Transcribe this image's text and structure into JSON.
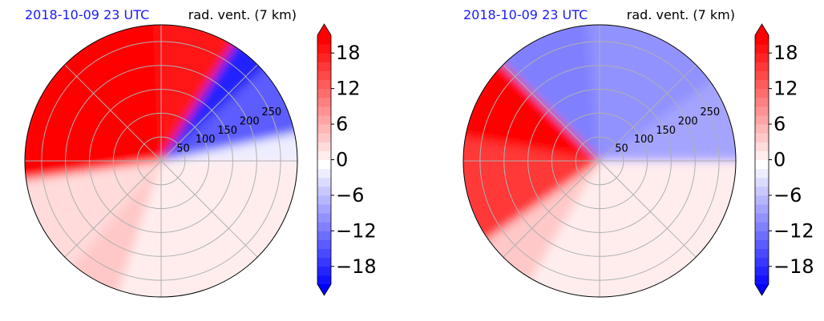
{
  "chart_data": [
    {
      "type": "polar-heatmap",
      "title_left": "2018-10-09 23 UTC",
      "title_right": "rad. vent. (7 km)",
      "radial_ticks": [
        "50",
        "100",
        "150",
        "200",
        "250"
      ],
      "radial_values": [
        50,
        100,
        150,
        200,
        250
      ],
      "r_max": 285,
      "n_spokes": 8,
      "grid": true,
      "colorbar": {
        "ticks": [
          "18",
          "12",
          "6",
          "0",
          "−6",
          "−12",
          "−18"
        ],
        "tick_values": [
          18,
          12,
          6,
          0,
          -6,
          -12,
          -18
        ],
        "vmin": -21,
        "vmax": 21,
        "extend": "both",
        "low_color": "#0000ff",
        "high_color": "#ff0000",
        "mid_color": "#ffffff"
      },
      "fields": [
        {
          "from_deg": 42,
          "to_deg": 92,
          "value": 20
        },
        {
          "from_deg": 92,
          "to_deg": 188,
          "value": 21
        },
        {
          "from_deg": 188,
          "to_deg": 230,
          "value": 3
        },
        {
          "from_deg": 230,
          "to_deg": 252,
          "value": 4
        },
        {
          "from_deg": 252,
          "to_deg": 300,
          "value": 1
        },
        {
          "from_deg": 300,
          "to_deg": 360,
          "value": 1
        },
        {
          "from_deg": 0,
          "to_deg": 12,
          "value": -1
        },
        {
          "from_deg": 12,
          "to_deg": 42,
          "value": -13
        },
        {
          "from_deg": 42,
          "to_deg": 58,
          "value": -18
        }
      ]
    },
    {
      "type": "polar-heatmap",
      "title_left": "2018-10-09 23 UTC",
      "title_right": "rad. vent. (7 km)",
      "radial_ticks": [
        "50",
        "100",
        "150",
        "200",
        "250"
      ],
      "radial_values": [
        50,
        100,
        150,
        200,
        250
      ],
      "r_max": 285,
      "n_spokes": 8,
      "grid": true,
      "colorbar": {
        "ticks": [
          "18",
          "12",
          "6",
          "0",
          "−6",
          "−12",
          "−18"
        ],
        "tick_values": [
          18,
          12,
          6,
          0,
          -6,
          -12,
          -18
        ],
        "vmin": -21,
        "vmax": 21,
        "extend": "both",
        "low_color": "#0000ff",
        "high_color": "#ff0000",
        "mid_color": "#ffffff"
      },
      "fields": [
        {
          "from_deg": 135,
          "to_deg": 170,
          "value": 21
        },
        {
          "from_deg": 170,
          "to_deg": 215,
          "value": 16
        },
        {
          "from_deg": 215,
          "to_deg": 240,
          "value": 5
        },
        {
          "from_deg": 240,
          "to_deg": 300,
          "value": 1
        },
        {
          "from_deg": 300,
          "to_deg": 360,
          "value": 1
        },
        {
          "from_deg": 0,
          "to_deg": 35,
          "value": -7
        },
        {
          "from_deg": 35,
          "to_deg": 95,
          "value": -9
        },
        {
          "from_deg": 95,
          "to_deg": 135,
          "value": -10
        }
      ]
    }
  ]
}
